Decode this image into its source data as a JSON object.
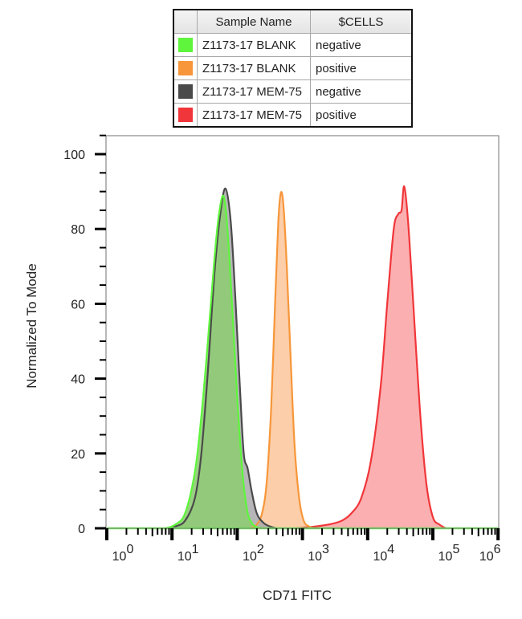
{
  "legend": {
    "headers": [
      "",
      "Sample Name",
      "$CELLS"
    ],
    "rows": [
      {
        "color": "#5ef53c",
        "sample": "Z1173-17 BLANK",
        "cells": "negative"
      },
      {
        "color": "#f7963a",
        "sample": "Z1173-17 BLANK",
        "cells": "positive"
      },
      {
        "color": "#4a4a4a",
        "sample": "Z1173-17 MEM-75",
        "cells": "negative"
      },
      {
        "color": "#f0363a",
        "sample": "Z1173-17 MEM-75",
        "cells": "positive"
      }
    ]
  },
  "axes": {
    "xlabel": "CD71 FITC",
    "ylabel": "Normalized To Mode"
  },
  "chart_data": {
    "type": "area",
    "title": "",
    "xlabel": "CD71 FITC",
    "ylabel": "Normalized To Mode",
    "xscale": "log",
    "xlim": [
      1,
      1000000
    ],
    "ylim": [
      0,
      105
    ],
    "x_tick_labels": [
      "10^0",
      "10^1",
      "10^2",
      "10^3",
      "10^4",
      "10^5",
      "10^6"
    ],
    "y_tick_labels": [
      "0",
      "20",
      "40",
      "60",
      "80",
      "100"
    ],
    "grid": false,
    "legend_position": "top",
    "series": [
      {
        "name": "Z1173-17 BLANK negative",
        "color": "#5ef53c",
        "fill": "#8fcb74",
        "log10_x": [
          0.9,
          1.05,
          1.2,
          1.35,
          1.45,
          1.55,
          1.65,
          1.72,
          1.79,
          1.85,
          1.92,
          2.0,
          2.08,
          2.15,
          2.22,
          2.3,
          2.4
        ],
        "values": [
          0,
          1,
          4,
          15,
          30,
          50,
          72,
          84,
          88.8,
          80,
          60,
          35,
          15,
          5,
          1.5,
          0.3,
          0
        ]
      },
      {
        "name": "Z1173-17 BLANK positive",
        "color": "#f7963a",
        "fill": "#fcc9a0",
        "log10_x": [
          2.2,
          2.3,
          2.38,
          2.45,
          2.52,
          2.58,
          2.63,
          2.67,
          2.71,
          2.76,
          2.82,
          2.88,
          2.95,
          3.02,
          3.1,
          3.18
        ],
        "values": [
          0,
          1,
          4,
          12,
          32,
          60,
          82,
          89.7,
          86,
          70,
          45,
          22,
          8,
          2,
          0.5,
          0
        ]
      },
      {
        "name": "Z1173-17 MEM-75 negative",
        "color": "#4a4a4a",
        "fill": "#a9a9ab",
        "log10_x": [
          0.9,
          1.05,
          1.2,
          1.35,
          1.45,
          1.55,
          1.65,
          1.74,
          1.82,
          1.9,
          1.97,
          2.04,
          2.1,
          2.16,
          2.22,
          2.3,
          2.4,
          2.5,
          2.6
        ],
        "values": [
          0,
          0.5,
          2,
          8,
          20,
          42,
          68,
          84,
          90.8,
          82,
          62,
          38,
          20,
          16,
          10,
          4,
          1.5,
          0.5,
          0
        ]
      },
      {
        "name": "Z1173-17 MEM-75 positive",
        "color": "#f0363a",
        "fill": "#fba6a7",
        "log10_x": [
          2.9,
          3.2,
          3.4,
          3.6,
          3.75,
          3.9,
          4.05,
          4.2,
          4.3,
          4.4,
          4.47,
          4.52,
          4.56,
          4.62,
          4.7,
          4.8,
          4.9,
          5.0,
          5.1,
          5.2
        ],
        "values": [
          0,
          0.5,
          1,
          2,
          4,
          8,
          18,
          38,
          60,
          80,
          84,
          85,
          91.4,
          82,
          60,
          32,
          12,
          3,
          1,
          0
        ]
      }
    ]
  }
}
